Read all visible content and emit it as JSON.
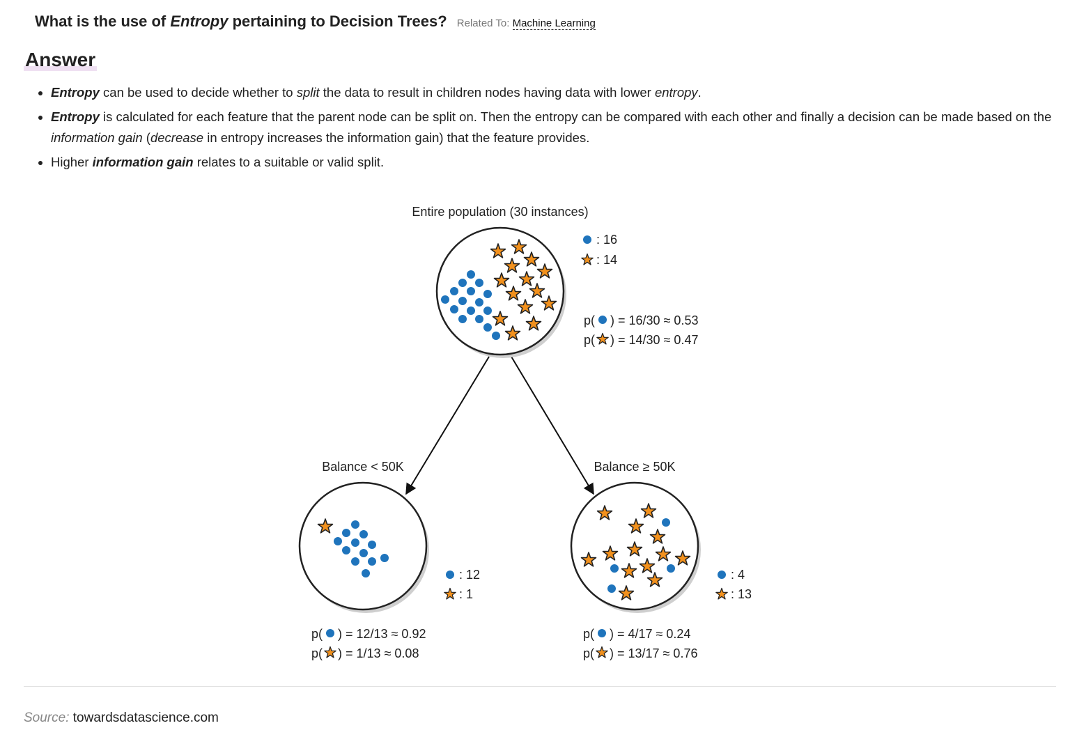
{
  "question": {
    "before": "What is the use of ",
    "em": "Entropy",
    "after": " pertaining to Decision Trees?",
    "related_label": "Related To:",
    "related_link": "Machine Learning"
  },
  "answer_heading": "Answer",
  "bullets": {
    "b1": {
      "t1": "Entropy",
      "t2": " can be used to decide whether to ",
      "t3": "split",
      "t4": " the data to result in children nodes having data with lower ",
      "t5": "entropy",
      "t6": "."
    },
    "b2": {
      "t1": "Entropy",
      "t2": " is calculated for each feature that the parent node can be split on. Then the entropy can be compared with each other and finally a decision can be made based on the ",
      "t3": "information gain",
      "t4": " (",
      "t5": "decrease",
      "t6": " in entropy increases the information gain) that the feature provides."
    },
    "b3": {
      "t1": "Higher ",
      "t2": "information gain",
      "t3": " relates to a suitable or valid split."
    }
  },
  "diagram": {
    "colors": {
      "dot": "#1f74bc",
      "star": "#f2911d",
      "outline": "#222222"
    },
    "root": {
      "title": "Entire population (30 instances)",
      "dot_count": ": 16",
      "star_count": ": 14",
      "p_dot": ") = 16/30 ≈ 0.53",
      "p_star": ") = 14/30 ≈ 0.47"
    },
    "left": {
      "title": "Balance < 50K",
      "dot_count": ": 12",
      "star_count": ": 1",
      "p_dot": ") = 12/13 ≈ 0.92",
      "p_star": ") = 1/13 ≈ 0.08"
    },
    "right": {
      "title": "Balance ≥ 50K",
      "dot_count": ": 4",
      "star_count": ": 13",
      "p_dot": ") = 4/17 ≈ 0.24",
      "p_star": ") = 13/17 ≈ 0.76"
    },
    "p_prefix": "p("
  },
  "source": {
    "label": "Source:",
    "value": "towardsdatascience.com"
  }
}
